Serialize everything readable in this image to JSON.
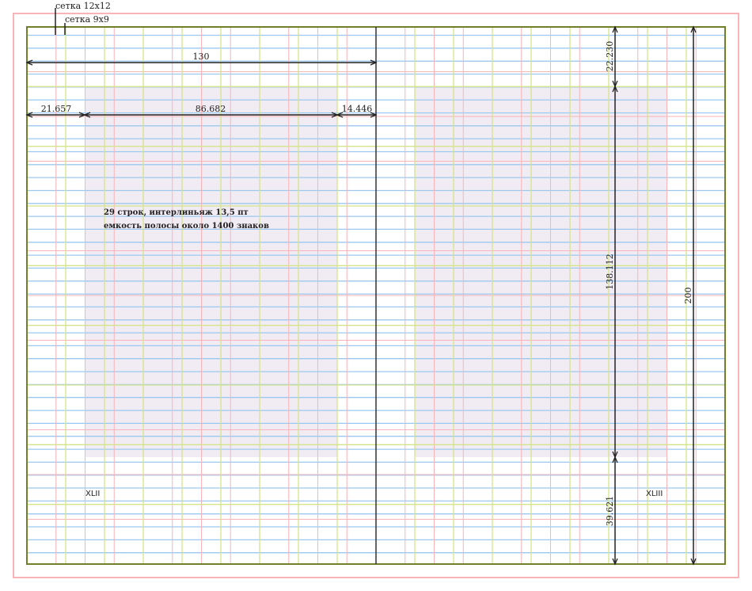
{
  "legend": {
    "grid12": "сетка 12x12",
    "grid9": "сетка 9x9"
  },
  "dimensions": {
    "spread_page_width": "130",
    "inner_margin": "14.446",
    "text_width": "86.682",
    "outer_margin": "21.657",
    "top_margin": "22.230",
    "text_height": "138.112",
    "bottom_margin": "39.621",
    "page_height": "200"
  },
  "note": {
    "line1": "29 строк, интерлиньяж 13,5 пт",
    "line2": "емкость полосы около 1400 знаков"
  },
  "pages": {
    "left_number": "XLII",
    "right_number": "XLIII"
  },
  "colors": {
    "grid12": "#f8b4b8",
    "grid9": "#d4e48a",
    "baseline": "#9cc8f0",
    "frame": "#6f7f2a",
    "text_block": "#f1ecf3",
    "outer": "#f8b4b8"
  }
}
